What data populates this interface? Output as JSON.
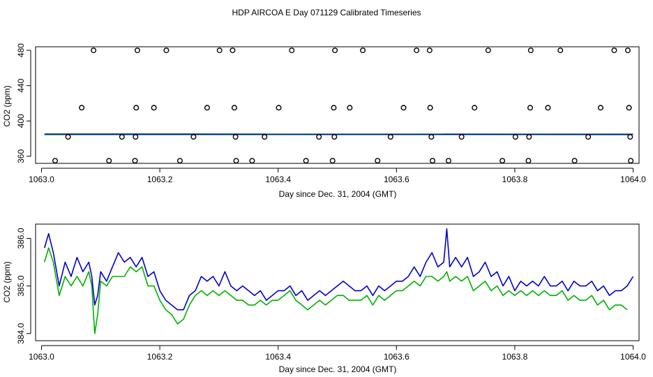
{
  "chart_data": [
    {
      "type": "scatter",
      "title": "HDP AIRCOA E  Day 071129  Calibrated Timeseries",
      "xlabel": "Day since Dec. 31, 2004 (GMT)",
      "ylabel": "CO2 (ppm)",
      "xlim": [
        1062.99,
        1064.01
      ],
      "ylim": [
        352,
        484
      ],
      "xticks": [
        1063.0,
        1063.2,
        1063.4,
        1063.6,
        1063.8,
        1064.0
      ],
      "xtick_labels": [
        "1063.0",
        "1063.2",
        "1063.4",
        "1063.6",
        "1063.8",
        "1064.0"
      ],
      "yticks": [
        360,
        400,
        440,
        480
      ],
      "ytick_labels": [
        "360",
        "400",
        "440",
        "480"
      ],
      "calibration_points": {
        "marker": "open-circle",
        "x": [
          1063.088,
          1063.162,
          1063.211,
          1063.301,
          1063.323,
          1063.423,
          1063.496,
          1063.543,
          1063.634,
          1063.656,
          1063.755,
          1063.827,
          1063.877,
          1063.968,
          1063.991,
          1063.068,
          1063.16,
          1063.19,
          1063.28,
          1063.326,
          1063.401,
          1063.494,
          1063.521,
          1063.612,
          1063.657,
          1063.732,
          1063.826,
          1063.856,
          1063.945,
          1063.993,
          1063.045,
          1063.136,
          1063.159,
          1063.257,
          1063.328,
          1063.377,
          1063.469,
          1063.495,
          1063.59,
          1063.659,
          1063.71,
          1063.801,
          1063.824,
          1063.924,
          1063.995,
          1063.023,
          1063.114,
          1063.158,
          1063.234,
          1063.329,
          1063.356,
          1063.447,
          1063.492,
          1063.568,
          1063.661,
          1063.688,
          1063.779,
          1063.823,
          1063.901,
          1063.996
        ],
        "y": [
          480,
          480,
          480,
          480,
          480,
          480,
          480,
          480,
          480,
          480,
          480,
          480,
          480,
          480,
          480,
          415,
          415,
          415,
          415,
          415,
          415,
          415,
          415,
          415,
          415,
          415,
          415,
          415,
          415,
          415,
          382,
          382,
          382,
          382,
          382,
          382,
          382,
          382,
          382,
          382,
          382,
          382,
          382,
          382,
          382,
          355,
          355,
          355,
          355,
          355,
          355,
          355,
          355,
          355,
          355,
          355,
          355,
          355,
          355,
          355
        ]
      },
      "series": [
        {
          "name": "co2-blue",
          "color": "#0000cc",
          "x": [
            1063.005,
            1064.0
          ],
          "values": [
            385.2,
            385.0
          ]
        },
        {
          "name": "co2-green",
          "color": "#00b000",
          "x": [
            1063.005,
            1063.995
          ],
          "values": [
            384.6,
            384.5
          ]
        }
      ]
    },
    {
      "type": "line",
      "title": "",
      "xlabel": "Day since Dec. 31, 2004 (GMT)",
      "ylabel": "CO2 (ppm)",
      "xlim": [
        1062.99,
        1064.01
      ],
      "ylim": [
        383.85,
        386.3
      ],
      "xticks": [
        1063.0,
        1063.2,
        1063.4,
        1063.6,
        1063.8,
        1064.0
      ],
      "xtick_labels": [
        "1063.0",
        "1063.2",
        "1063.4",
        "1063.6",
        "1063.8",
        "1064.0"
      ],
      "yticks": [
        384.0,
        385.0,
        386.0
      ],
      "ytick_labels": [
        "384.0",
        "385.0",
        "386.0"
      ],
      "series": [
        {
          "name": "co2-blue",
          "color": "#0000cc",
          "x": [
            1063.005,
            1063.012,
            1063.02,
            1063.03,
            1063.04,
            1063.05,
            1063.06,
            1063.07,
            1063.08,
            1063.085,
            1063.09,
            1063.095,
            1063.1,
            1063.11,
            1063.12,
            1063.13,
            1063.14,
            1063.15,
            1063.16,
            1063.17,
            1063.18,
            1063.19,
            1063.2,
            1063.21,
            1063.22,
            1063.23,
            1063.24,
            1063.25,
            1063.26,
            1063.27,
            1063.28,
            1063.29,
            1063.3,
            1063.31,
            1063.32,
            1063.33,
            1063.34,
            1063.35,
            1063.36,
            1063.37,
            1063.38,
            1063.39,
            1063.4,
            1063.41,
            1063.42,
            1063.43,
            1063.44,
            1063.45,
            1063.46,
            1063.47,
            1063.48,
            1063.49,
            1063.5,
            1063.51,
            1063.52,
            1063.53,
            1063.54,
            1063.55,
            1063.56,
            1063.57,
            1063.58,
            1063.59,
            1063.6,
            1063.61,
            1063.62,
            1063.63,
            1063.64,
            1063.65,
            1063.66,
            1063.67,
            1063.68,
            1063.685,
            1063.69,
            1063.7,
            1063.71,
            1063.72,
            1063.73,
            1063.74,
            1063.75,
            1063.76,
            1063.77,
            1063.78,
            1063.79,
            1063.8,
            1063.81,
            1063.82,
            1063.83,
            1063.84,
            1063.85,
            1063.86,
            1063.87,
            1063.88,
            1063.89,
            1063.9,
            1063.91,
            1063.92,
            1063.93,
            1063.94,
            1063.95,
            1063.96,
            1063.97,
            1063.98,
            1063.99,
            1064.0
          ],
          "values": [
            385.8,
            386.1,
            385.7,
            385.0,
            385.5,
            385.2,
            385.6,
            385.3,
            385.5,
            385.2,
            384.6,
            384.8,
            385.3,
            385.1,
            385.4,
            385.7,
            385.5,
            385.6,
            385.4,
            385.6,
            385.2,
            385.3,
            384.9,
            384.7,
            384.6,
            384.5,
            384.5,
            384.8,
            384.9,
            385.2,
            385.1,
            385.2,
            385.0,
            385.3,
            385.0,
            384.9,
            385.0,
            384.9,
            384.8,
            384.9,
            384.7,
            384.8,
            384.9,
            384.9,
            385.0,
            384.8,
            384.9,
            384.7,
            384.8,
            384.9,
            384.8,
            384.9,
            385.0,
            385.1,
            385.0,
            384.9,
            384.9,
            385.0,
            384.8,
            385.0,
            384.9,
            385.0,
            385.1,
            385.1,
            385.2,
            385.4,
            385.2,
            385.5,
            385.7,
            385.4,
            385.5,
            386.2,
            385.4,
            385.6,
            385.4,
            385.6,
            385.2,
            385.3,
            385.5,
            385.2,
            385.3,
            385.0,
            385.2,
            384.9,
            385.1,
            385.0,
            385.1,
            385.0,
            385.2,
            385.0,
            385.0,
            385.1,
            384.9,
            385.1,
            385.0,
            385.0,
            385.1,
            384.9,
            385.0,
            384.8,
            384.9,
            384.9,
            385.0,
            385.2
          ]
        },
        {
          "name": "co2-green",
          "color": "#00b000",
          "x": [
            1063.005,
            1063.012,
            1063.02,
            1063.03,
            1063.04,
            1063.05,
            1063.06,
            1063.07,
            1063.08,
            1063.085,
            1063.09,
            1063.095,
            1063.1,
            1063.11,
            1063.12,
            1063.13,
            1063.14,
            1063.15,
            1063.16,
            1063.17,
            1063.18,
            1063.19,
            1063.2,
            1063.21,
            1063.22,
            1063.23,
            1063.24,
            1063.25,
            1063.26,
            1063.27,
            1063.28,
            1063.29,
            1063.3,
            1063.31,
            1063.32,
            1063.33,
            1063.34,
            1063.35,
            1063.36,
            1063.37,
            1063.38,
            1063.39,
            1063.4,
            1063.41,
            1063.42,
            1063.43,
            1063.44,
            1063.45,
            1063.46,
            1063.47,
            1063.48,
            1063.49,
            1063.5,
            1063.51,
            1063.52,
            1063.53,
            1063.54,
            1063.55,
            1063.56,
            1063.57,
            1063.58,
            1063.59,
            1063.6,
            1063.61,
            1063.62,
            1063.63,
            1063.64,
            1063.65,
            1063.66,
            1063.67,
            1063.68,
            1063.685,
            1063.69,
            1063.7,
            1063.71,
            1063.72,
            1063.73,
            1063.74,
            1063.75,
            1063.76,
            1063.77,
            1063.78,
            1063.79,
            1063.8,
            1063.81,
            1063.82,
            1063.83,
            1063.84,
            1063.85,
            1063.86,
            1063.87,
            1063.88,
            1063.89,
            1063.9,
            1063.91,
            1063.92,
            1063.93,
            1063.94,
            1063.95,
            1063.96,
            1063.97,
            1063.98,
            1063.99
          ],
          "values": [
            385.5,
            385.8,
            385.5,
            384.8,
            385.2,
            385.0,
            385.2,
            385.0,
            385.3,
            385.0,
            384.0,
            384.4,
            385.1,
            385.0,
            385.2,
            385.2,
            385.2,
            385.4,
            385.3,
            385.4,
            385.0,
            385.0,
            384.7,
            384.5,
            384.4,
            384.2,
            384.3,
            384.6,
            384.8,
            384.9,
            384.8,
            384.9,
            384.8,
            384.9,
            384.8,
            384.7,
            384.7,
            384.6,
            384.6,
            384.7,
            384.6,
            384.7,
            384.7,
            384.8,
            384.9,
            384.7,
            384.6,
            384.5,
            384.6,
            384.7,
            384.6,
            384.7,
            384.8,
            384.8,
            384.7,
            384.7,
            384.7,
            384.8,
            384.6,
            384.8,
            384.7,
            384.8,
            384.9,
            384.9,
            385.0,
            385.1,
            385.0,
            385.2,
            385.2,
            385.1,
            385.2,
            385.3,
            385.1,
            385.2,
            385.1,
            385.2,
            384.9,
            385.0,
            385.1,
            384.9,
            385.0,
            384.8,
            384.9,
            384.8,
            384.9,
            384.8,
            384.9,
            384.8,
            384.9,
            384.8,
            384.8,
            384.9,
            384.7,
            384.8,
            384.7,
            384.7,
            384.8,
            384.6,
            384.7,
            384.5,
            384.6,
            384.6,
            384.5
          ]
        }
      ]
    }
  ]
}
